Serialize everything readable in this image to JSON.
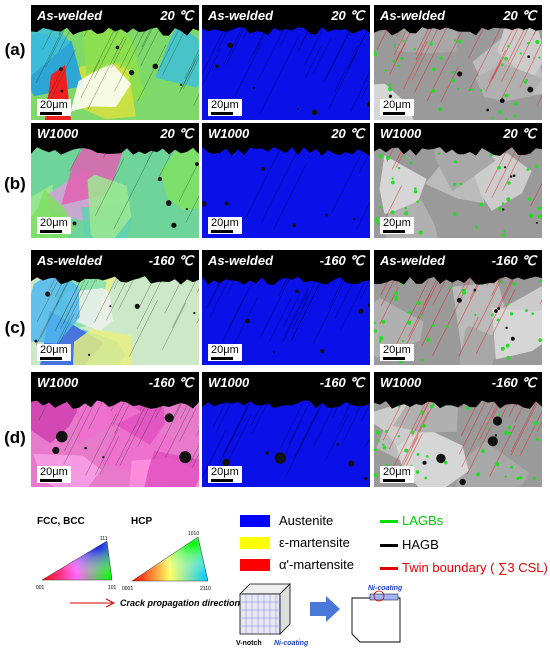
{
  "row_labels": [
    "(a)",
    "(b)",
    "(c)",
    "(d)"
  ],
  "rows": [
    {
      "panels": [
        {
          "title": "As-welded",
          "temp": "20 ℃",
          "scale": "20μm"
        },
        {
          "title": "As-welded",
          "temp": "20 ℃",
          "scale": "20μm"
        },
        {
          "title": "As-welded",
          "temp": "20 ℃",
          "scale": "20μm"
        }
      ]
    },
    {
      "panels": [
        {
          "title": "W1000",
          "temp": "20 ℃",
          "scale": "20μm"
        },
        {
          "title": "W1000",
          "temp": "20 ℃",
          "scale": "20μm"
        },
        {
          "title": "W1000",
          "temp": "20 ℃",
          "scale": "20μm"
        }
      ]
    },
    {
      "panels": [
        {
          "title": "As-welded",
          "temp": "-160 ℃",
          "scale": "20μm"
        },
        {
          "title": "As-welded",
          "temp": "-160 ℃",
          "scale": "20μm"
        },
        {
          "title": "As-welded",
          "temp": "-160 ℃",
          "scale": "20μm"
        }
      ]
    },
    {
      "panels": [
        {
          "title": "W1000",
          "temp": "-160 ℃",
          "scale": "20μm"
        },
        {
          "title": "W1000",
          "temp": "-160 ℃",
          "scale": "20μm"
        },
        {
          "title": "W1000",
          "temp": "-160 ℃",
          "scale": "20μm"
        }
      ]
    }
  ],
  "legend": {
    "fcc_bcc": {
      "label": "FCC, BCC",
      "top": "111",
      "left": "001",
      "right": "101"
    },
    "hcp": {
      "label": "HCP",
      "top": "1010",
      "left": "0001",
      "right": "2110"
    },
    "phases": [
      {
        "label": "Austenite",
        "color": "#0000ff"
      },
      {
        "label": "ε-martensite",
        "color": "#ffff00"
      },
      {
        "label": "α'-martensite",
        "color": "#ff0000"
      }
    ],
    "boundaries": [
      {
        "label": "LAGBs",
        "color": "#00dd00"
      },
      {
        "label": "HAGB",
        "color": "#000000"
      },
      {
        "label": "Twin boundary ( ∑3 CSL)",
        "color": "#e00000"
      }
    ],
    "crack_label": "Crack propagation direction",
    "v_notch": "V-notch",
    "ni_coating_1": "Ni-coating",
    "ni_coating_2": "Ni-coating"
  }
}
